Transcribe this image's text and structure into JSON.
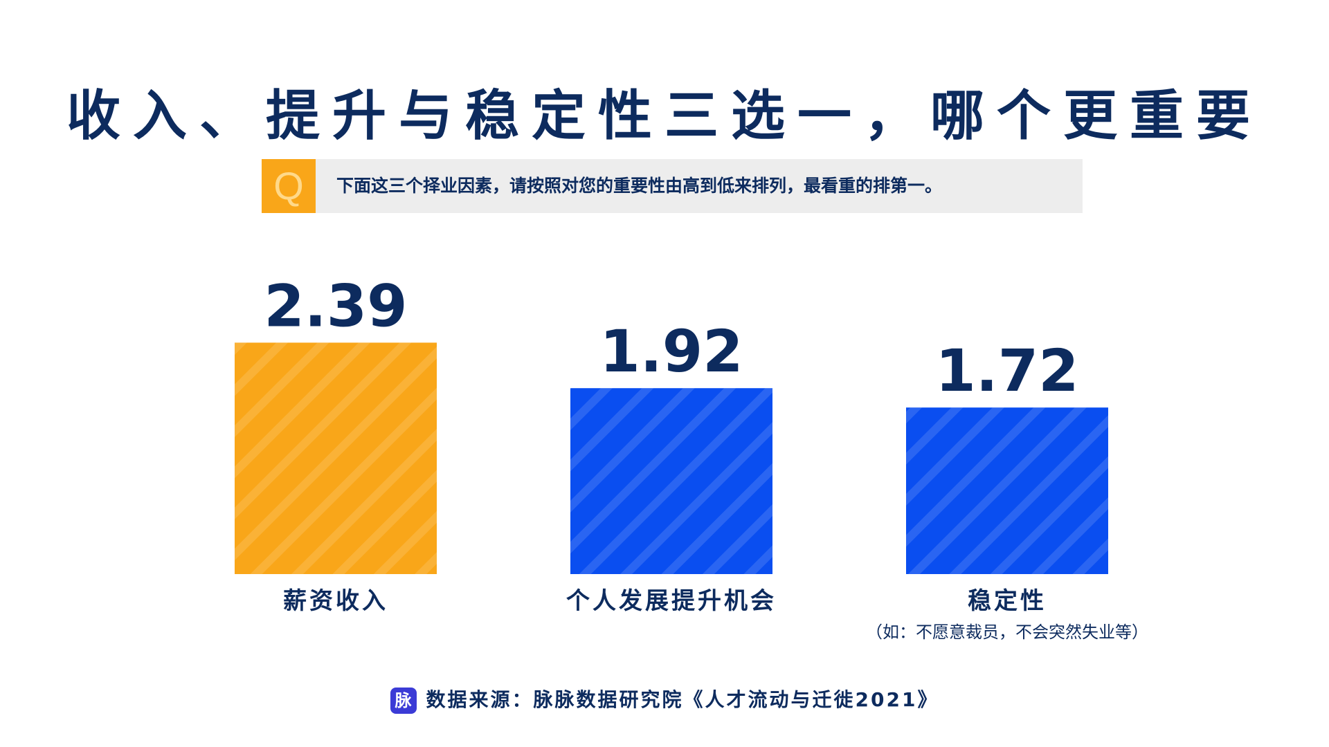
{
  "title": "收入、提升与稳定性三选一，哪个更重要",
  "question": {
    "badge": "Q",
    "text": "下面这三个择业因素，请按照对您的重要性由高到低来排列，最看重的排第一。"
  },
  "source": {
    "icon_text": "脉",
    "text": "数据来源：脉脉数据研究院《人才流动与迁徙2021》"
  },
  "colors": {
    "navy": "#0d2b5e",
    "orange": "#f9a619",
    "blue": "#0a4ef0"
  },
  "chart_data": {
    "type": "bar",
    "categories": [
      "薪资收入",
      "个人发展提升机会",
      "稳定性"
    ],
    "values": [
      2.39,
      1.92,
      1.72
    ],
    "value_labels": [
      "2.39",
      "1.92",
      "1.72"
    ],
    "subtitles": [
      "",
      "",
      "（如：不愿意裁员，不会突然失业等）"
    ],
    "colors": [
      "#f9a619",
      "#0a4ef0",
      "#0a4ef0"
    ],
    "title": "",
    "xlabel": "",
    "ylabel": "",
    "grid": false
  }
}
